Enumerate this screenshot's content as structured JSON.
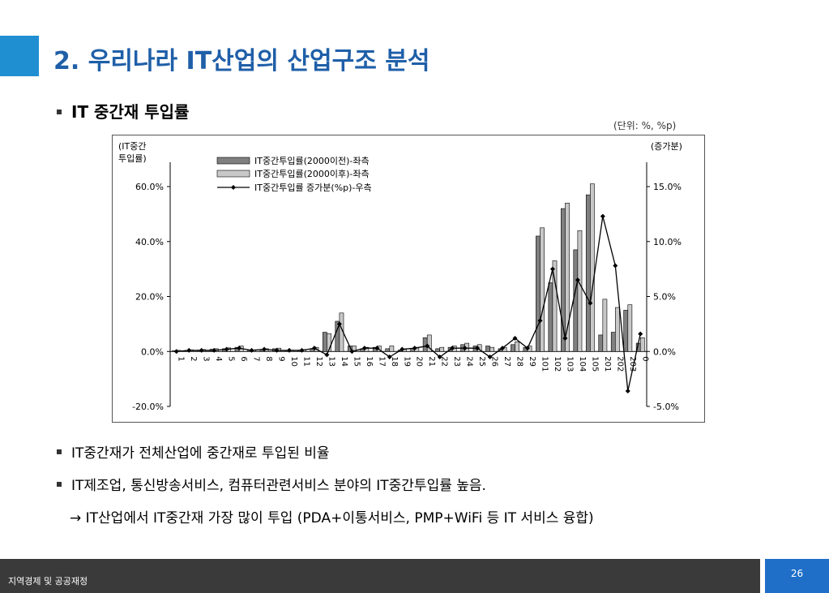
{
  "slide": {
    "title": "2. 우리나라 IT산업의 산업구조 분석",
    "subtitle": "IT 중간재 투입률",
    "unit_note": "(단위: %, %p)",
    "bullets": [
      "IT중간재가 전체산업에 중간재로 투입된 비율",
      "IT제조업, 통신방송서비스, 컴퓨터관련서비스 분야의 IT중간투입률 높음.",
      "→ IT산업에서 IT중간재 가장 많이 투입 (PDA+이통서비스, PMP+WiFi 등 IT 서비스 융합)"
    ],
    "footer": "지역경제 및 공공재정",
    "page_number": "26"
  },
  "colors": {
    "accent": "#1f8fd2",
    "title": "#1f5fa8",
    "footer_bg": "#3a3a3a",
    "page_box": "#1f6fc8",
    "bar_dark": "#808080",
    "bar_light": "#c8c8c8"
  },
  "chart_data": {
    "type": "bar",
    "left_axis_title": [
      "(IT중간",
      "투입률)"
    ],
    "right_axis_title": "(증가분)",
    "categories": [
      "1",
      "2",
      "3",
      "4",
      "5",
      "6",
      "7",
      "8",
      "9",
      "10",
      "11",
      "12",
      "13",
      "14",
      "15",
      "16",
      "17",
      "18",
      "19",
      "20",
      "21",
      "22",
      "23",
      "24",
      "25",
      "26",
      "27",
      "28",
      "29",
      "101",
      "102",
      "103",
      "104",
      "105",
      "201",
      "202",
      "203",
      "0"
    ],
    "left_ylim": [
      -20,
      60
    ],
    "left_ticks": [
      -20,
      0,
      20,
      40,
      60
    ],
    "left_tick_labels": [
      "-20.0%",
      "0.0%",
      "20.0%",
      "40.0%",
      "60.0%"
    ],
    "right_ylim": [
      -5,
      15
    ],
    "right_ticks": [
      -5,
      0,
      5,
      10,
      15
    ],
    "right_tick_labels": [
      "-5.0%",
      "0.0%",
      "5.0%",
      "10.0%",
      "15.0%"
    ],
    "series": [
      {
        "name": "IT중간투입률(2000이전)-좌측",
        "axis": "left",
        "kind": "bar",
        "values": [
          0.3,
          0.4,
          0.5,
          0.8,
          1.0,
          1.5,
          0.4,
          0.7,
          1.0,
          0.3,
          0.5,
          1.0,
          7.0,
          11.0,
          2.0,
          1.0,
          1.5,
          1.0,
          0.5,
          1.0,
          5.0,
          1.0,
          1.5,
          2.5,
          2.0,
          2.0,
          1.0,
          2.5,
          1.5,
          42,
          25,
          52,
          37,
          57,
          6,
          7,
          15,
          3
        ]
      },
      {
        "name": "IT중간투입률(2000이후)-좌측",
        "axis": "left",
        "kind": "bar",
        "values": [
          0.4,
          0.6,
          0.7,
          1.0,
          1.3,
          2.0,
          0.6,
          1.0,
          1.2,
          0.5,
          0.7,
          1.5,
          6.5,
          14.0,
          2.0,
          1.5,
          2.0,
          2.0,
          0.7,
          1.5,
          6.0,
          1.5,
          2.0,
          3.0,
          2.5,
          1.5,
          1.5,
          3.5,
          2.0,
          45,
          33,
          54,
          44,
          61,
          19,
          16,
          17,
          5
        ]
      },
      {
        "name": "IT중간투입률 증가분(%p)-우측",
        "axis": "right",
        "kind": "line",
        "values": [
          0.0,
          0.1,
          0.1,
          0.1,
          0.2,
          0.3,
          0.1,
          0.2,
          0.1,
          0.1,
          0.1,
          0.3,
          -0.3,
          2.5,
          0.0,
          0.3,
          0.3,
          -0.5,
          0.2,
          0.3,
          0.5,
          -0.5,
          0.3,
          0.3,
          0.3,
          -0.5,
          0.3,
          1.2,
          0.3,
          2.8,
          7.5,
          1.2,
          6.5,
          4.4,
          12.3,
          7.8,
          -3.6,
          1.6
        ]
      }
    ]
  }
}
